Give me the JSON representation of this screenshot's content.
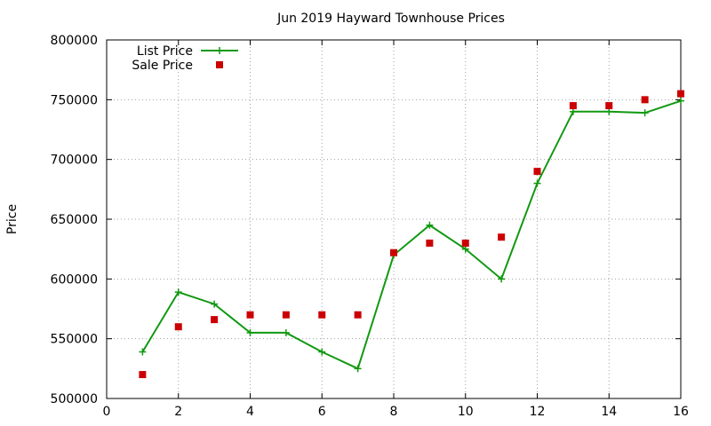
{
  "chart_data": {
    "type": "line",
    "title": "Jun 2019 Hayward Townhouse Prices",
    "xlabel": "",
    "ylabel": "Price",
    "xlim": [
      0,
      16
    ],
    "ylim": [
      500000,
      800000
    ],
    "x_ticks": [
      0,
      2,
      4,
      6,
      8,
      10,
      12,
      14,
      16
    ],
    "y_ticks": [
      500000,
      550000,
      600000,
      650000,
      700000,
      750000,
      800000
    ],
    "grid": true,
    "legend_position": "top-left",
    "series": [
      {
        "name": "List Price",
        "style": "line-with-plus-markers",
        "color": "#119911",
        "x": [
          1,
          2,
          3,
          4,
          5,
          6,
          7,
          8,
          9,
          10,
          11,
          12,
          13,
          14,
          15,
          16
        ],
        "values": [
          539000,
          589000,
          579000,
          555000,
          555000,
          539000,
          525000,
          620000,
          645000,
          625000,
          600000,
          680000,
          740000,
          740000,
          739000,
          749000
        ]
      },
      {
        "name": "Sale Price",
        "style": "square-markers",
        "color": "#cc0000",
        "x": [
          1,
          2,
          3,
          4,
          5,
          6,
          7,
          8,
          9,
          10,
          11,
          12,
          13,
          14,
          15,
          16
        ],
        "values": [
          520000,
          560000,
          566000,
          570000,
          570000,
          570000,
          570000,
          622000,
          630000,
          630000,
          635000,
          690000,
          745000,
          745000,
          750000,
          755000
        ]
      }
    ]
  }
}
